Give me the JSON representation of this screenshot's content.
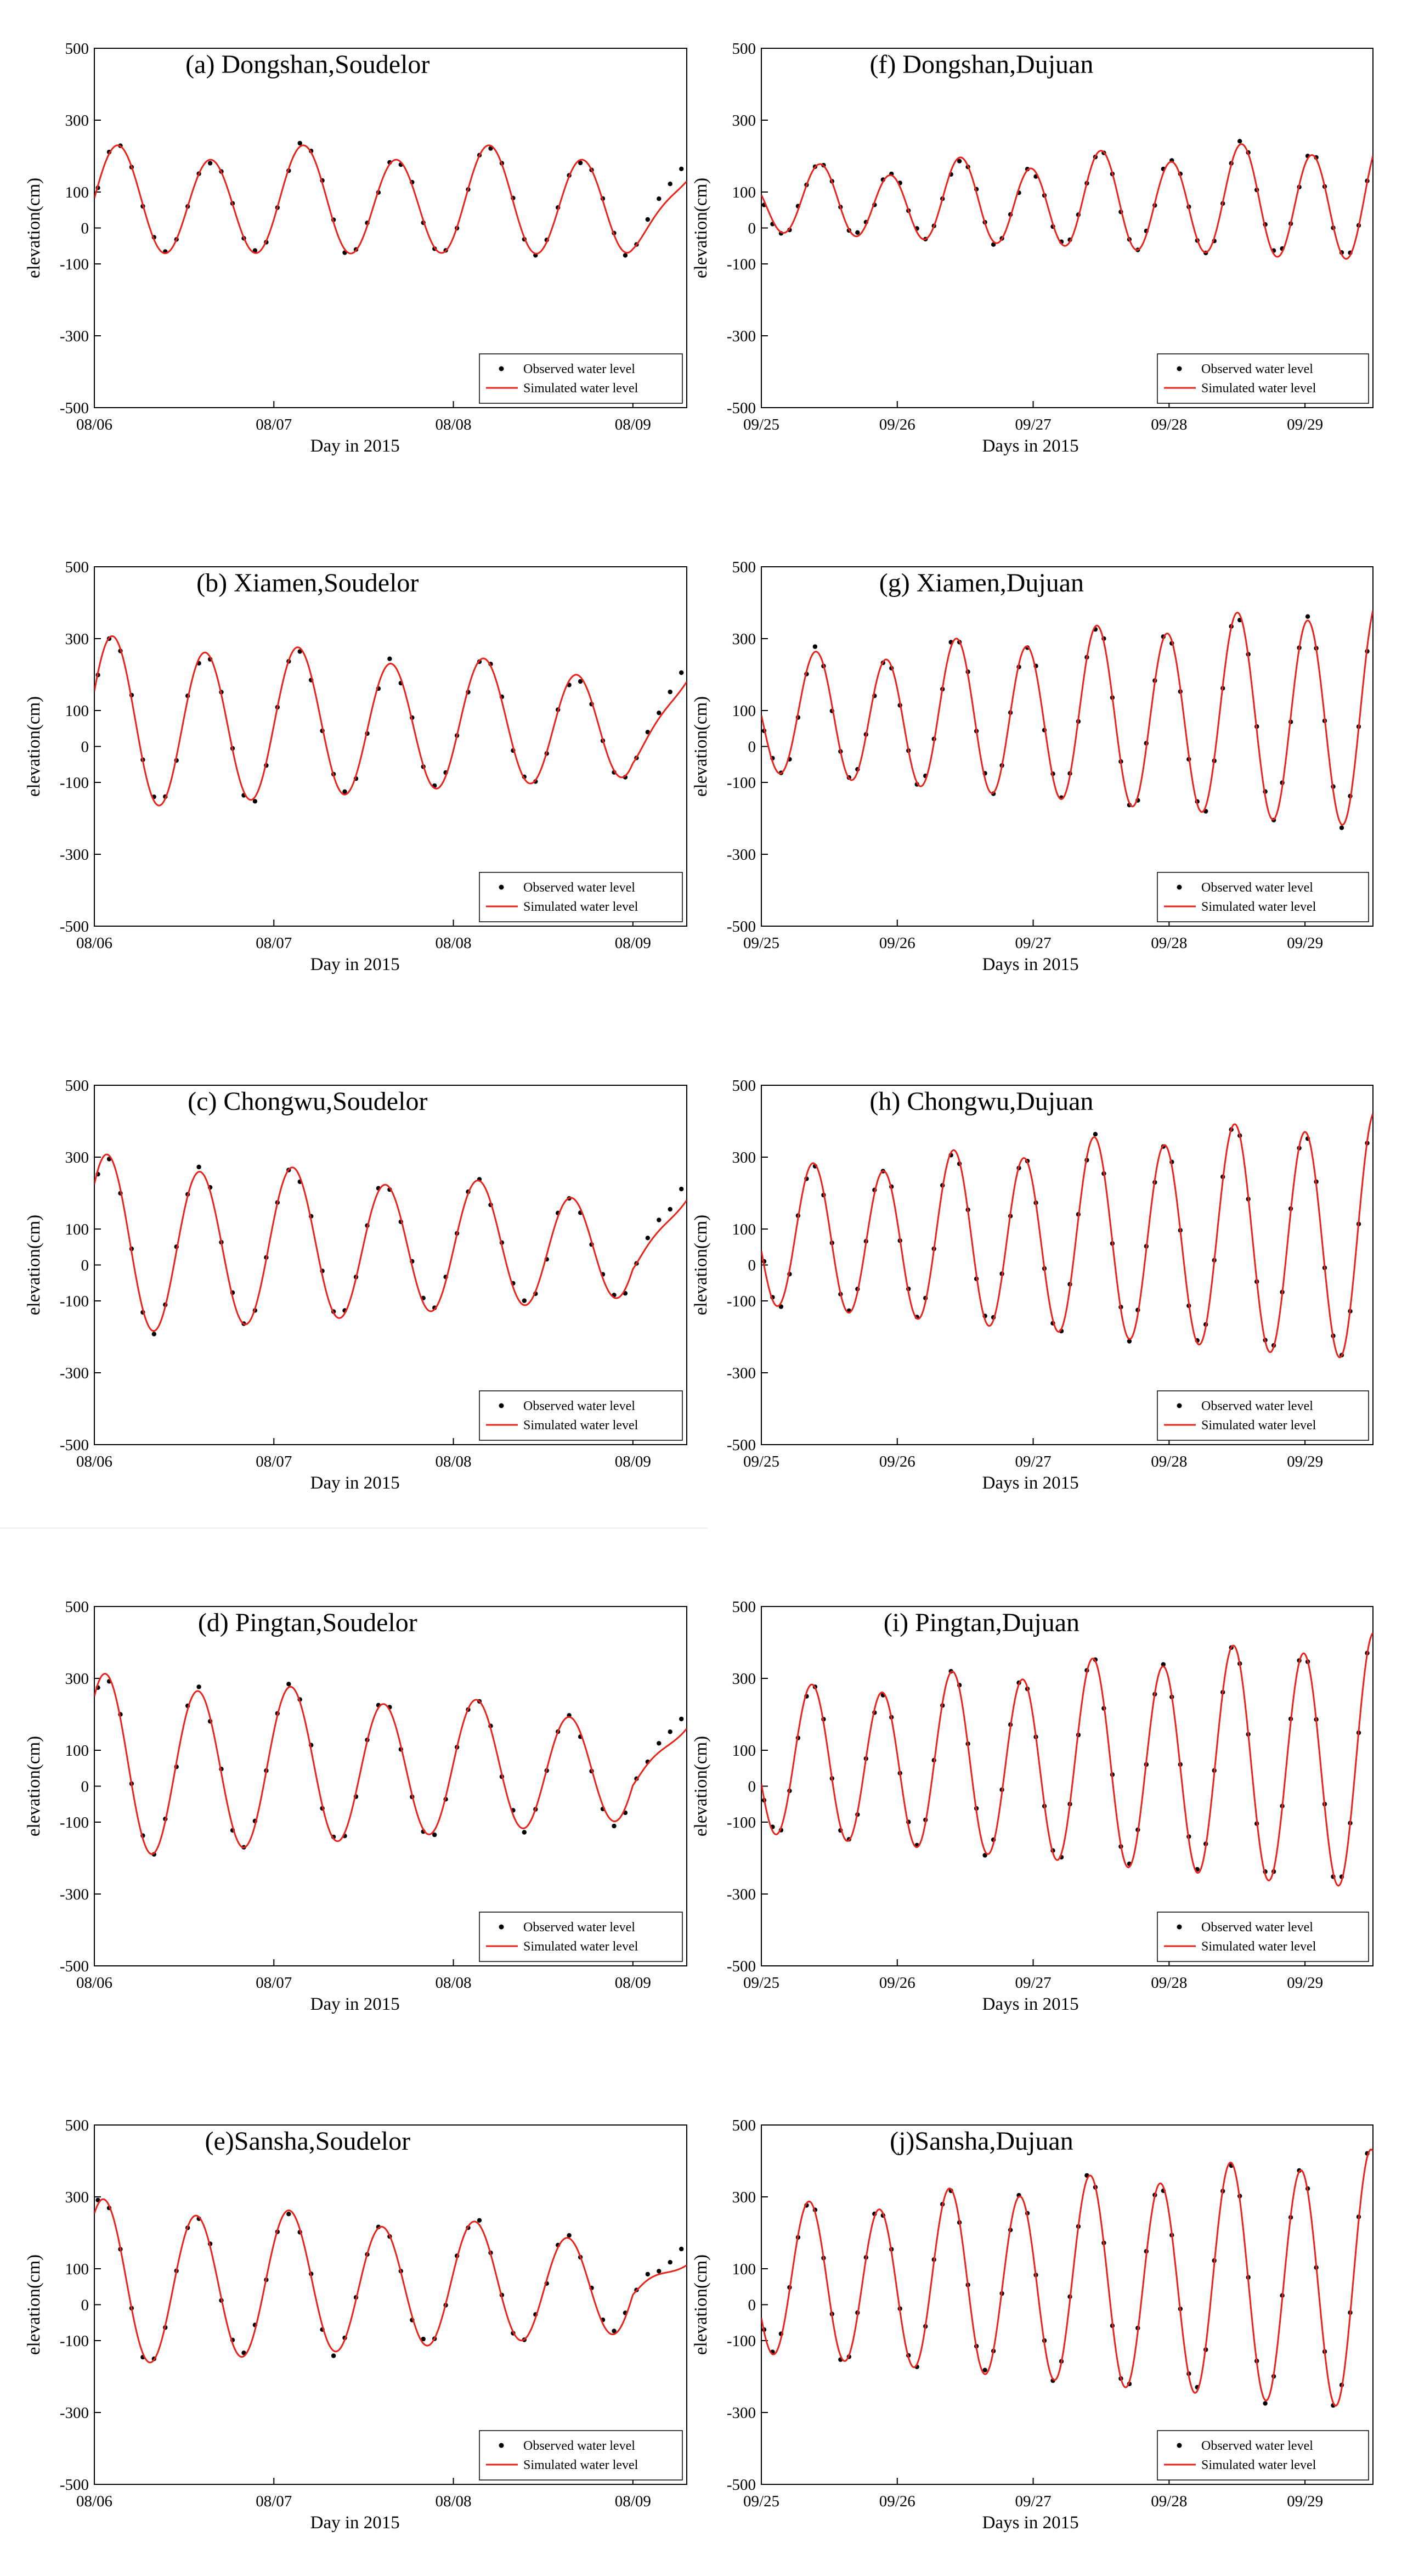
{
  "colors": {
    "observed": "#000000",
    "simulated": "#e8231b"
  },
  "legend": {
    "observed": "Observed water level",
    "simulated": "Simulated water level"
  },
  "chart_data": [
    {
      "id": "a",
      "type": "line",
      "title": "(a) Dongshan,Soudelor",
      "xlabel": "Day in 2015",
      "ylabel": "elevation(cm)",
      "ylim": [
        -500,
        500
      ],
      "yticks": [
        500,
        300,
        100,
        0,
        -100,
        -300,
        -500
      ],
      "xlim": [
        0,
        3.3
      ],
      "xticks": [
        0,
        1,
        2,
        3
      ],
      "xticklabels": [
        "08/06",
        "08/07",
        "08/08",
        "08/09"
      ],
      "tide": {
        "mean": 70,
        "amp": 140,
        "amp_growth": 0,
        "phase": 0.13,
        "period": 0.517,
        "diurnal": 20
      },
      "series": [
        {
          "name": "Observed water level",
          "style": "points",
          "dt": 0.0625,
          "noise": 10,
          "tail_start": 3.0,
          "tail_end_value": 190
        },
        {
          "name": "Simulated water level",
          "style": "line",
          "tail_start": 3.0,
          "tail_end_value": 130
        }
      ]
    },
    {
      "id": "f",
      "type": "line",
      "title": "(f) Dongshan,Dujuan",
      "xlabel": "Days in 2015",
      "ylabel": "elevation(cm)",
      "ylim": [
        -500,
        500
      ],
      "yticks": [
        500,
        300,
        100,
        0,
        -100,
        -300,
        -500
      ],
      "xlim": [
        0,
        4.5
      ],
      "xticks": [
        0,
        1,
        2,
        3,
        4
      ],
      "xticklabels": [
        "09/25",
        "09/26",
        "09/27",
        "09/28",
        "09/29"
      ],
      "tide": {
        "mean": 70,
        "amp": 80,
        "amp_growth": 18,
        "phase": 0.43,
        "period": 0.517,
        "diurnal": 20
      },
      "series": [
        {
          "name": "Observed water level",
          "style": "points",
          "dt": 0.0625,
          "noise": 12
        },
        {
          "name": "Simulated water level",
          "style": "line"
        }
      ]
    },
    {
      "id": "b",
      "type": "line",
      "title": "(b) Xiamen,Soudelor",
      "xlabel": "Day in 2015",
      "ylabel": "elevation(cm)",
      "ylim": [
        -500,
        500
      ],
      "yticks": [
        500,
        300,
        100,
        0,
        -100,
        -300,
        -500
      ],
      "xlim": [
        0,
        3.3
      ],
      "xticks": [
        0,
        1,
        2,
        3
      ],
      "xticklabels": [
        "08/06",
        "08/07",
        "08/08",
        "08/09"
      ],
      "tide": {
        "mean": 60,
        "amp": 235,
        "amp_growth": -30,
        "phase": 0.1,
        "period": 0.517,
        "diurnal": 15
      },
      "series": [
        {
          "name": "Observed water level",
          "style": "points",
          "dt": 0.0625,
          "noise": 14,
          "tail_start": 3.0,
          "tail_end_value": 230
        },
        {
          "name": "Simulated water level",
          "style": "line",
          "tail_start": 3.0,
          "tail_end_value": 180
        }
      ]
    },
    {
      "id": "g",
      "type": "line",
      "title": "(g) Xiamen,Dujuan",
      "xlabel": "Days in 2015",
      "ylabel": "elevation(cm)",
      "ylim": [
        -500,
        500
      ],
      "yticks": [
        500,
        300,
        100,
        0,
        -100,
        -300,
        -500
      ],
      "xlim": [
        0,
        4.5
      ],
      "xticks": [
        0,
        1,
        2,
        3,
        4
      ],
      "xticklabels": [
        "09/25",
        "09/26",
        "09/27",
        "09/28",
        "09/29"
      ],
      "tide": {
        "mean": 80,
        "amp": 150,
        "amp_growth": 35,
        "phase": 0.4,
        "period": 0.517,
        "diurnal": 20
      },
      "series": [
        {
          "name": "Observed water level",
          "style": "points",
          "dt": 0.0625,
          "noise": 15
        },
        {
          "name": "Simulated water level",
          "style": "line"
        }
      ]
    },
    {
      "id": "c",
      "type": "line",
      "title": "(c) Chongwu,Soudelor",
      "xlabel": "Day in 2015",
      "ylabel": "elevation(cm)",
      "ylim": [
        -500,
        500
      ],
      "yticks": [
        500,
        300,
        100,
        0,
        -100,
        -300,
        -500
      ],
      "xlim": [
        0,
        3.3
      ],
      "xticks": [
        0,
        1,
        2,
        3
      ],
      "xticklabels": [
        "08/06",
        "08/07",
        "08/08",
        "08/09"
      ],
      "tide": {
        "mean": 50,
        "amp": 245,
        "amp_growth": -35,
        "phase": 0.07,
        "period": 0.517,
        "diurnal": 15
      },
      "series": [
        {
          "name": "Observed water level",
          "style": "points",
          "dt": 0.0625,
          "noise": 14,
          "tail_start": 3.0,
          "tail_end_value": 230
        },
        {
          "name": "Simulated water level",
          "style": "line",
          "tail_start": 3.0,
          "tail_end_value": 180
        }
      ]
    },
    {
      "id": "h",
      "type": "line",
      "title": "(h) Chongwu,Dujuan",
      "xlabel": "Days in 2015",
      "ylabel": "elevation(cm)",
      "ylim": [
        -500,
        500
      ],
      "yticks": [
        500,
        300,
        100,
        0,
        -100,
        -300,
        -500
      ],
      "xlim": [
        0,
        4.5
      ],
      "xticks": [
        0,
        1,
        2,
        3,
        4
      ],
      "xticklabels": [
        "09/25",
        "09/26",
        "09/27",
        "09/28",
        "09/29"
      ],
      "tide": {
        "mean": 70,
        "amp": 180,
        "amp_growth": 35,
        "phase": 0.38,
        "period": 0.517,
        "diurnal": 20
      },
      "series": [
        {
          "name": "Observed water level",
          "style": "points",
          "dt": 0.0625,
          "noise": 12
        },
        {
          "name": "Simulated water level",
          "style": "line"
        }
      ]
    },
    {
      "id": "d",
      "type": "line",
      "title": "(d) Pingtan,Soudelor",
      "xlabel": "Day in 2015",
      "ylabel": "elevation(cm)",
      "ylim": [
        -500,
        500
      ],
      "yticks": [
        500,
        300,
        100,
        0,
        -100,
        -300,
        -500
      ],
      "xlim": [
        0,
        3.3
      ],
      "xticks": [
        0,
        1,
        2,
        3
      ],
      "xticklabels": [
        "08/06",
        "08/07",
        "08/08",
        "08/09"
      ],
      "tide": {
        "mean": 50,
        "amp": 250,
        "amp_growth": -35,
        "phase": 0.06,
        "period": 0.517,
        "diurnal": 15
      },
      "series": [
        {
          "name": "Observed water level",
          "style": "points",
          "dt": 0.0625,
          "noise": 14,
          "tail_start": 3.0,
          "tail_end_value": 200
        },
        {
          "name": "Simulated water level",
          "style": "line",
          "tail_start": 3.0,
          "tail_end_value": 160
        }
      ]
    },
    {
      "id": "i",
      "type": "line",
      "title": "(i) Pingtan,Dujuan",
      "xlabel": "Days in 2015",
      "ylabel": "elevation(cm)",
      "ylim": [
        -500,
        500
      ],
      "yticks": [
        500,
        300,
        100,
        0,
        -100,
        -300,
        -500
      ],
      "xlim": [
        0,
        4.5
      ],
      "xticks": [
        0,
        1,
        2,
        3,
        4
      ],
      "xticklabels": [
        "09/25",
        "09/26",
        "09/27",
        "09/28",
        "09/29"
      ],
      "tide": {
        "mean": 60,
        "amp": 190,
        "amp_growth": 35,
        "phase": 0.37,
        "period": 0.517,
        "diurnal": 20
      },
      "series": [
        {
          "name": "Observed water level",
          "style": "points",
          "dt": 0.0625,
          "noise": 12
        },
        {
          "name": "Simulated water level",
          "style": "line"
        }
      ]
    },
    {
      "id": "e",
      "type": "line",
      "title": "(e)Sansha,Soudelor",
      "xlabel": "Day in 2015",
      "ylabel": "elevation(cm)",
      "ylim": [
        -500,
        500
      ],
      "yticks": [
        500,
        300,
        100,
        0,
        -100,
        -300,
        -500
      ],
      "xlim": [
        0,
        3.3
      ],
      "xticks": [
        0,
        1,
        2,
        3
      ],
      "xticklabels": [
        "08/06",
        "08/07",
        "08/08",
        "08/09"
      ],
      "tide": {
        "mean": 55,
        "amp": 225,
        "amp_growth": -30,
        "phase": 0.05,
        "period": 0.517,
        "diurnal": 15
      },
      "series": [
        {
          "name": "Observed water level",
          "style": "points",
          "dt": 0.0625,
          "noise": 14,
          "tail_start": 3.0,
          "tail_end_value": 160
        },
        {
          "name": "Simulated water level",
          "style": "line",
          "tail_start": 3.0,
          "tail_end_value": 110
        }
      ]
    },
    {
      "id": "j",
      "type": "line",
      "title": "(j)Sansha,Dujuan",
      "xlabel": "Days in 2015",
      "ylabel": "elevation(cm)",
      "ylim": [
        -500,
        500
      ],
      "yticks": [
        500,
        300,
        100,
        0,
        -100,
        -300,
        -500
      ],
      "xlim": [
        0,
        4.5
      ],
      "xticks": [
        0,
        1,
        2,
        3,
        4
      ],
      "xticklabels": [
        "09/25",
        "09/26",
        "09/27",
        "09/28",
        "09/29"
      ],
      "tide": {
        "mean": 60,
        "amp": 195,
        "amp_growth": 35,
        "phase": 0.35,
        "period": 0.517,
        "diurnal": 20
      },
      "series": [
        {
          "name": "Observed water level",
          "style": "points",
          "dt": 0.0625,
          "noise": 12
        },
        {
          "name": "Simulated water level",
          "style": "line"
        }
      ]
    }
  ]
}
